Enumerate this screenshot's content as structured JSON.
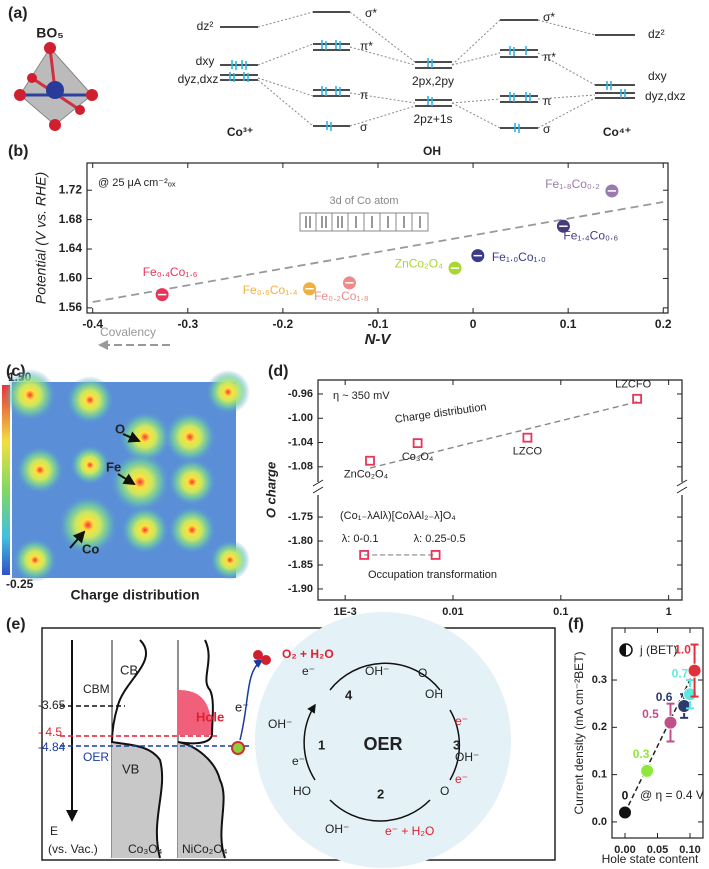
{
  "panel_labels": [
    "(a)",
    "(b)",
    "(c)",
    "(d)",
    "(e)",
    "(f)"
  ],
  "a": {
    "structure": "BO₅",
    "left_levels": [
      "dz²",
      "dxy",
      "dyz,dxz"
    ],
    "mo_levels": [
      "σ*",
      "π*",
      "π",
      "σ"
    ],
    "oh_levels": [
      "2px,2py",
      "2pz+1s"
    ],
    "right_levels": [
      "dz²",
      "dxy",
      "dyz,dxz"
    ],
    "left_ion": "Co³⁺",
    "center": "OH",
    "right_ion": "Co⁴⁺"
  },
  "c": {
    "colorbar_max": "1.50",
    "colorbar_min": "-0.25",
    "atoms": [
      "O",
      "Fe",
      "Co"
    ],
    "caption": "Charge distribution"
  },
  "e": {
    "dos": {
      "cb": "CB",
      "cbm": "CBM",
      "vb": "VB",
      "hole": "Hole",
      "oer": "OER",
      "electron": "e⁻",
      "materials": [
        "Co₃O₄",
        "NiCo₂O₄"
      ]
    },
    "energy_axis": {
      "label": "E",
      "unit": "(vs. Vac.)",
      "levels": [
        "-3.65",
        "- 4.5",
        "-4.84"
      ]
    },
    "cycle": {
      "title": "OER",
      "steps": [
        "1",
        "2",
        "3",
        "4"
      ],
      "species": [
        "O₂ + H₂O",
        "OH⁻",
        "e⁻",
        "e⁻ + H₂O",
        "HO",
        "O",
        "OH"
      ]
    }
  },
  "chart_data": [
    {
      "type": "scatter",
      "x_label": "N-V",
      "y_label": "Potential (V vs. RHE)",
      "annotations": [
        "@ 25 μA cm⁻²ₒₓ",
        "3d of Co atom",
        "Covalency"
      ],
      "xlim": [
        -0.406,
        0.205
      ],
      "xticks": [
        -0.4,
        -0.3,
        -0.2,
        -0.1,
        0,
        0.1,
        0.2
      ],
      "ylim": [
        1.553,
        1.757
      ],
      "yticks": [
        1.56,
        {
          "value": 1.6,
          "label": "1.60"
        },
        1.64,
        1.68,
        1.72
      ],
      "trend": {
        "x": [
          -0.4,
          0.2
        ],
        "values": [
          1.568,
          1.704
        ]
      },
      "series": [
        {
          "name": "Fe₀.₄Co₁.₆",
          "color": "#e8355a",
          "x": [
            -0.327
          ],
          "values": [
            1.578
          ]
        },
        {
          "name": "Fe₀.₆Co₁.₄",
          "color": "#f0b040",
          "x": [
            -0.172
          ],
          "values": [
            1.586
          ]
        },
        {
          "name": "Fe₀.₂Co₁.₈",
          "color": "#f08a8a",
          "x": [
            -0.13
          ],
          "values": [
            1.594
          ]
        },
        {
          "name": "ZnCo₂O₄",
          "color": "#a8d830",
          "x": [
            -0.019
          ],
          "values": [
            1.614
          ]
        },
        {
          "name": "Fe₁.₀Co₁.₀",
          "color": "#3a3a8a",
          "x": [
            0.005
          ],
          "values": [
            1.631
          ]
        },
        {
          "name": "Fe₁.₄Co₀.₆",
          "color": "#4a3a7a",
          "x": [
            0.095
          ],
          "values": [
            1.671
          ]
        },
        {
          "name": "Fe₁.₈Co₀.₂",
          "color": "#9a7aaa",
          "x": [
            0.146
          ],
          "values": [
            1.719
          ]
        }
      ]
    },
    {
      "type": "scatter",
      "log_x": true,
      "y_label": "O charge",
      "annotations": [
        "η ~ 350 mV",
        "(Co₁₋λAlλ)[CoλAl₂₋λ]O₄"
      ],
      "xlim": [
        0.00056,
        1.33
      ],
      "xticks": [
        {
          "value": 0.001,
          "label": "1E-3"
        },
        0.01,
        0.1,
        1
      ],
      "y_segments": [
        {
          "ylim": [
            -1.105,
            -0.937
          ],
          "yticks": [
            -0.96,
            {
              "value": -1,
              "label": "-1.00"
            },
            -1.04,
            -1.08
          ]
        },
        {
          "ylim": [
            -1.923,
            -1.704
          ],
          "yticks": [
            -1.75,
            {
              "value": -1.8,
              "label": "-1.80"
            },
            -1.85,
            {
              "value": -1.9,
              "label": "-1.90"
            }
          ]
        }
      ],
      "trend": {
        "x": [
          0.0017,
          0.51
        ],
        "values": [
          -1.082,
          -0.973
        ]
      },
      "series": [
        {
          "name": "Charge distribution",
          "color": "#e8355a",
          "segment": 0,
          "x": [
            0.0017,
            0.0047,
            0.049,
            0.51
          ],
          "values": [
            -1.07,
            -1.041,
            -1.032,
            -0.968
          ],
          "point_labels": [
            "ZnCo₂O₄",
            "Co₃O₄",
            "LZCO",
            "LZCFO"
          ]
        },
        {
          "name": "Occupation transformation",
          "color": "#e8355a",
          "segment": 1,
          "x": [
            0.0015,
            0.0069
          ],
          "values": [
            -1.829,
            -1.829
          ],
          "point_labels": [
            "λ: 0-0.1",
            "λ: 0.25-0.5"
          ]
        }
      ]
    },
    {
      "type": "scatter",
      "x_label": "Hole state content",
      "y_label": "Current density (mA cm⁻²BET)",
      "annotations": [
        "@ η = 0.4 V"
      ],
      "xlim": [
        -0.02,
        0.12
      ],
      "xticks": [
        {
          "value": 0,
          "label": "0.00"
        },
        0.05,
        {
          "value": 0.1,
          "label": "0.10"
        }
      ],
      "ylim": [
        -0.034,
        0.41
      ],
      "yticks": [
        {
          "value": 0,
          "label": "0.0"
        },
        0.1,
        0.2,
        0.3
      ],
      "fit": {
        "x": [
          0,
          0.107
        ],
        "values": [
          0.02,
          0.32
        ]
      },
      "series": [
        {
          "name": "j (BET)",
          "x": [
            0,
            0.034,
            0.07,
            0.091,
            0.1,
            0.107
          ],
          "values": [
            0.02,
            0.108,
            0.21,
            0.245,
            0.27,
            0.32
          ],
          "errors": [
            0,
            0.012,
            0.04,
            0.025,
            0.03,
            0.055
          ],
          "colors": [
            "#111111",
            "#8ee83a",
            "#c0508a",
            "#2a3a6a",
            "#5fe8e0",
            "#e0303a"
          ],
          "point_labels": [
            "0",
            "0.3",
            "0.5",
            "0.6",
            "0.7",
            "1.0"
          ]
        }
      ]
    }
  ]
}
